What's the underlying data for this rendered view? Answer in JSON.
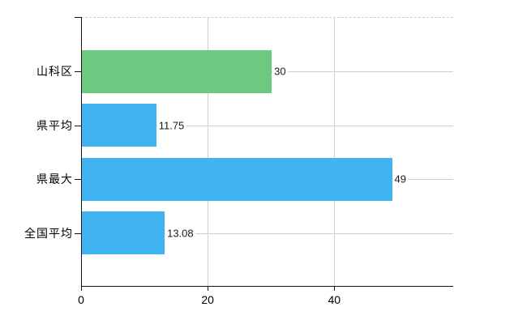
{
  "chart_data": {
    "type": "bar",
    "orientation": "horizontal",
    "title": "",
    "categories": [
      "山科区",
      "県平均",
      "県最大",
      "全国平均"
    ],
    "values": [
      30,
      11.75,
      49,
      13.08
    ],
    "value_labels": [
      "30",
      "11.75",
      "49",
      "13.08"
    ],
    "bar_colors": [
      "#6cc982",
      "#3fb4f0",
      "#3fb4f0",
      "#3fb4f0"
    ],
    "x_ticks": [
      0,
      20,
      40
    ],
    "x_tick_labels": [
      "0",
      "20",
      "40"
    ],
    "xlim": [
      0,
      58.8
    ],
    "xlabel": "",
    "ylabel": "",
    "grid": true,
    "legend": false
  },
  "colors": {
    "background": "#ffffff",
    "bar_green": "#6cc982",
    "bar_blue": "#3fb4f0",
    "axis": "#141414",
    "grid_horizontal": "#c9d4c9",
    "grid_vertical": "#d4d0d2",
    "plot_top_border": "#d0ccce",
    "tick_text": "#000000",
    "value_text": "#1a1a1a"
  }
}
